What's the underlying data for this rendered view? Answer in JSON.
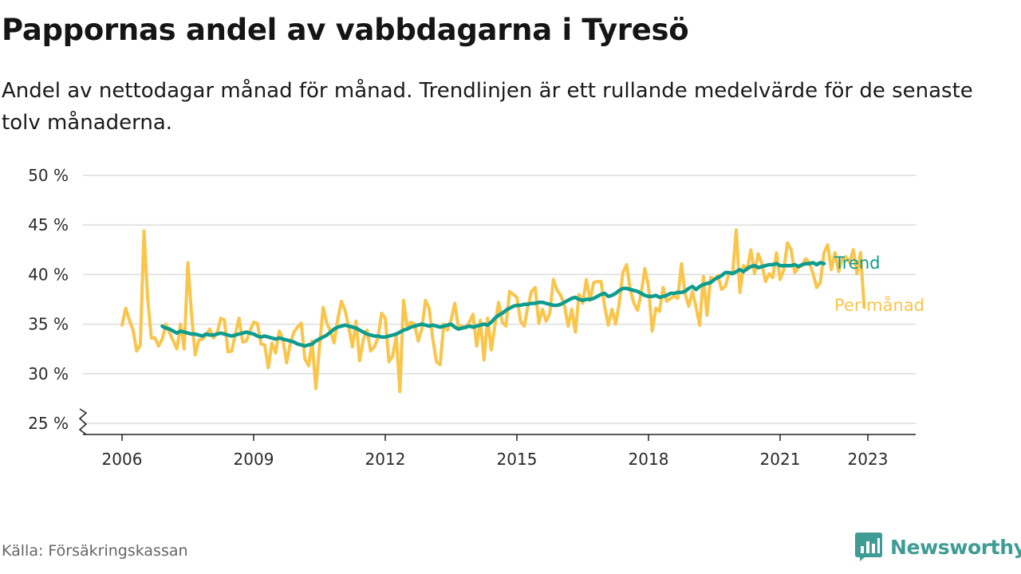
{
  "title": "Pappornas andel av vabbdagarna i Tyresö",
  "subtitle": "Andel av nettodagar månad för månad. Trendlinjen är ett rullande medelvärde för de senaste tolv månaderna.",
  "source": "Källa: Försäkringskassan",
  "brand": {
    "name": "Newsworthy",
    "icon": "bar-chart-speech-bubble-icon",
    "color": "#3f9c94"
  },
  "colors": {
    "trend": "#0e9c8f",
    "monthly": "#f9c54a",
    "grid": "#dddddd",
    "axis": "#222222"
  },
  "chart_data": {
    "type": "line",
    "y_unit": "%",
    "ylim": [
      25,
      50
    ],
    "y_ticks": [
      {
        "value": 25,
        "label": "25 %"
      },
      {
        "value": 30,
        "label": "30 %"
      },
      {
        "value": 35,
        "label": "35 %"
      },
      {
        "value": 40,
        "label": "40 %"
      },
      {
        "value": 45,
        "label": "45 %"
      },
      {
        "value": 50,
        "label": "50 %"
      }
    ],
    "y_axis_break": true,
    "x_ticks": [
      "2006",
      "2009",
      "2012",
      "2015",
      "2018",
      "2021",
      "2023"
    ],
    "grid": "horizontal",
    "series": [
      {
        "name": "Per månad",
        "start": "2006-01",
        "color": "#f9c54a",
        "values": [
          34.9,
          36.6,
          35.4,
          34.4,
          32.3,
          32.9,
          44.4,
          37.6,
          33.6,
          33.6,
          32.8,
          33.5,
          35.0,
          34.1,
          33.3,
          32.5,
          35.0,
          32.5,
          41.2,
          36.0,
          31.9,
          33.4,
          33.5,
          33.9,
          34.5,
          33.6,
          34.1,
          35.6,
          35.4,
          32.2,
          32.3,
          34.0,
          35.6,
          33.2,
          33.3,
          34.3,
          35.2,
          35.1,
          33.0,
          32.9,
          30.6,
          33.1,
          32.1,
          34.3,
          33.5,
          31.1,
          33.0,
          34.2,
          34.7,
          35.1,
          31.5,
          30.8,
          33.3,
          28.5,
          32.7,
          36.7,
          35.1,
          34.3,
          33.1,
          35.5,
          37.3,
          36.4,
          34.7,
          32.7,
          35.3,
          31.3,
          33.5,
          34.4,
          32.3,
          32.7,
          33.6,
          36.1,
          35.6,
          31.2,
          31.8,
          33.8,
          28.2,
          37.4,
          34.7,
          35.2,
          35.0,
          33.3,
          34.5,
          37.4,
          36.6,
          33.5,
          31.2,
          30.9,
          35.0,
          34.4,
          35.4,
          37.1,
          34.7,
          34.8,
          34.6,
          35.2,
          36.0,
          32.8,
          35.4,
          31.4,
          35.6,
          32.4,
          34.9,
          37.2,
          35.2,
          34.8,
          38.3,
          38.0,
          37.7,
          35.3,
          34.8,
          36.8,
          38.3,
          38.7,
          35.1,
          36.5,
          35.3,
          36.1,
          39.5,
          38.4,
          37.9,
          36.9,
          34.8,
          36.5,
          34.2,
          38.0,
          37.1,
          39.5,
          37.4,
          39.2,
          39.3,
          39.3,
          36.8,
          34.9,
          36.5,
          35.0,
          37.1,
          40.2,
          41.0,
          38.5,
          37.1,
          36.4,
          38.1,
          40.6,
          38.8,
          34.3,
          36.6,
          36.3,
          38.7,
          37.3,
          37.6,
          37.8,
          37.6,
          41.1,
          38.1,
          36.8,
          38.3,
          36.7,
          34.9,
          39.8,
          35.9,
          39.7,
          39.5,
          39.9,
          38.5,
          38.8,
          40.1,
          40.1,
          44.5,
          38.2,
          40.9,
          40.5,
          42.5,
          40.1,
          42.1,
          41.1,
          39.3,
          40.1,
          39.7,
          42.2,
          39.5,
          40.5,
          43.2,
          42.5,
          40.2,
          40.7,
          40.9,
          41.6,
          41.2,
          40.1,
          38.7,
          39.2,
          42.2,
          43.0,
          40.5,
          42.2,
          40.3,
          41.6,
          41.8,
          41.2,
          42.5,
          40.1,
          42.2,
          36.7
        ]
      },
      {
        "name": "Trend",
        "start": "2006-12",
        "color": "#0e9c8f",
        "values": [
          34.8,
          34.6,
          34.5,
          34.3,
          34.1,
          34.3,
          34.2,
          34.1,
          34.0,
          34.0,
          33.9,
          33.8,
          34.0,
          33.9,
          33.9,
          34.0,
          34.1,
          34.0,
          33.9,
          33.8,
          33.9,
          34.0,
          34.1,
          34.2,
          34.1,
          34.0,
          33.8,
          33.7,
          33.8,
          33.7,
          33.6,
          33.5,
          33.6,
          33.5,
          33.4,
          33.3,
          33.2,
          33.0,
          32.9,
          32.8,
          32.9,
          33.0,
          33.3,
          33.5,
          33.7,
          33.9,
          34.2,
          34.5,
          34.7,
          34.8,
          34.9,
          34.8,
          34.7,
          34.6,
          34.4,
          34.2,
          34.0,
          33.9,
          33.8,
          33.8,
          33.7,
          33.7,
          33.8,
          33.9,
          34.0,
          34.2,
          34.4,
          34.5,
          34.7,
          34.8,
          34.9,
          35.0,
          34.9,
          34.8,
          34.9,
          34.8,
          34.7,
          34.8,
          34.9,
          35.0,
          34.7,
          34.5,
          34.6,
          34.7,
          34.8,
          34.7,
          34.8,
          34.9,
          35.0,
          34.9,
          35.2,
          35.6,
          35.9,
          36.1,
          36.4,
          36.6,
          36.8,
          36.9,
          36.9,
          37.0,
          37.0,
          37.1,
          37.1,
          37.2,
          37.2,
          37.1,
          37.0,
          36.9,
          36.9,
          37.0,
          37.2,
          37.4,
          37.6,
          37.7,
          37.5,
          37.4,
          37.5,
          37.5,
          37.6,
          37.8,
          38.0,
          38.1,
          37.8,
          37.9,
          38.1,
          38.4,
          38.6,
          38.6,
          38.5,
          38.4,
          38.3,
          38.1,
          37.9,
          37.8,
          37.8,
          37.9,
          37.7,
          37.8,
          37.9,
          38.1,
          38.1,
          38.2,
          38.2,
          38.3,
          38.6,
          38.8,
          38.5,
          38.8,
          39.0,
          39.1,
          39.2,
          39.5,
          39.7,
          39.9,
          40.2,
          40.2,
          40.1,
          40.3,
          40.5,
          40.3,
          40.6,
          40.8,
          40.9,
          40.7,
          40.8,
          40.9,
          41.0,
          41.0,
          41.1,
          40.9,
          40.9,
          40.9,
          40.9,
          41.0,
          40.8,
          41.0,
          41.1,
          41.1,
          41.2,
          41.0,
          41.2,
          41.1
        ]
      }
    ]
  }
}
